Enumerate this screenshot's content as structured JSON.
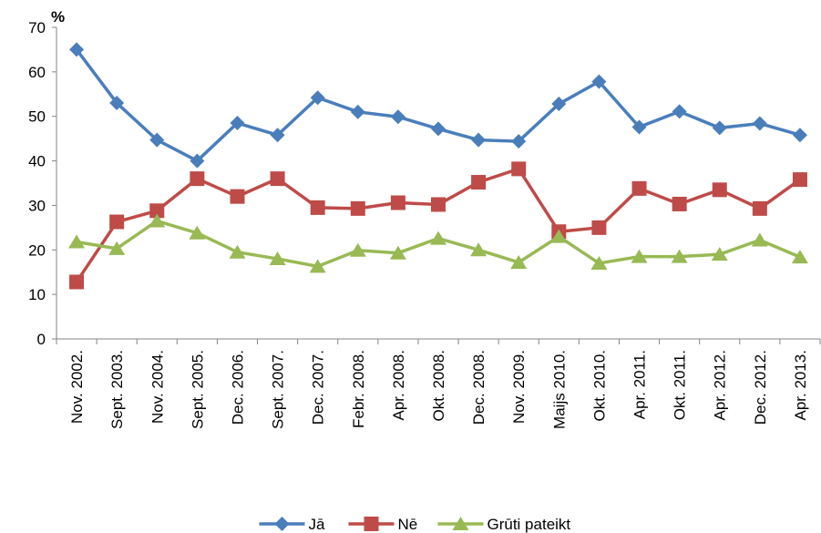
{
  "chart_data": {
    "type": "line",
    "y_unit": "%",
    "categories": [
      "Nov. 2002.",
      "Sept. 2003.",
      "Nov. 2004.",
      "Sept. 2005.",
      "Dec. 2006.",
      "Sept. 2007.",
      "Dec. 2007.",
      "Febr. 2008.",
      "Apr. 2008.",
      "Okt. 2008.",
      "Dec. 2008.",
      "Nov. 2009.",
      "Maijs 2010.",
      "Okt. 2010.",
      "Apr. 2011.",
      "Okt. 2011.",
      "Apr. 2012.",
      "Dec. 2012.",
      "Apr. 2013."
    ],
    "series": [
      {
        "name": "Jā",
        "color": "#4a7ebb",
        "marker": "diamond",
        "values": [
          65,
          53,
          44.7,
          40,
          48.5,
          45.8,
          54.2,
          51,
          49.9,
          47.2,
          44.7,
          44.4,
          52.8,
          57.8,
          47.6,
          51.1,
          47.4,
          48.4,
          45.8
        ]
      },
      {
        "name": "Nē",
        "color": "#be4b48",
        "marker": "square",
        "values": [
          12.8,
          26.3,
          28.8,
          36,
          32,
          36,
          29.5,
          29.3,
          30.6,
          30.2,
          35.2,
          38.2,
          24.1,
          25,
          33.8,
          30.3,
          33.5,
          29.3,
          35.8
        ]
      },
      {
        "name": "Grūti pateikt",
        "color": "#98b954",
        "marker": "triangle",
        "values": [
          21.8,
          20.3,
          26.5,
          23.8,
          19.5,
          18,
          16.3,
          19.9,
          19.3,
          22.6,
          20,
          17.2,
          23,
          17,
          18.5,
          18.5,
          19,
          22.2,
          18.4
        ]
      }
    ],
    "ylim": [
      0,
      70
    ],
    "yticks": [
      0,
      10,
      20,
      30,
      40,
      50,
      60,
      70
    ],
    "grid": false,
    "legend": "bottom"
  }
}
